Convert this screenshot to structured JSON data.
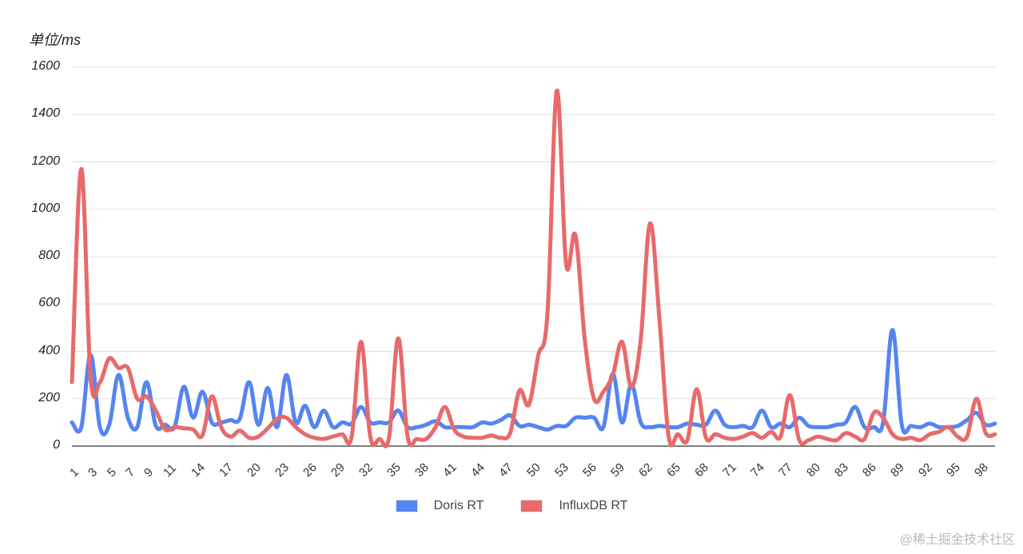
{
  "chart_data": {
    "type": "line",
    "title": "",
    "ylabel": "单位/ms",
    "xlabel": "",
    "ylim": [
      0,
      1600
    ],
    "yticks": [
      0,
      200,
      400,
      600,
      800,
      1000,
      1200,
      1400,
      1600
    ],
    "xtick_labels": [
      "1",
      "3",
      "5",
      "7",
      "9",
      "11",
      "14",
      "17",
      "20",
      "23",
      "26",
      "29",
      "32",
      "35",
      "38",
      "41",
      "44",
      "47",
      "50",
      "53",
      "56",
      "59",
      "62",
      "65",
      "68",
      "71",
      "74",
      "77",
      "80",
      "83",
      "86",
      "89",
      "92",
      "95",
      "98"
    ],
    "grid": true,
    "legend_position": "bottom",
    "x": [
      1,
      2,
      3,
      4,
      5,
      6,
      7,
      8,
      9,
      10,
      11,
      12,
      13,
      14,
      15,
      16,
      17,
      18,
      19,
      20,
      21,
      22,
      23,
      24,
      25,
      26,
      27,
      28,
      29,
      30,
      31,
      32,
      33,
      34,
      35,
      36,
      37,
      38,
      39,
      40,
      41,
      42,
      43,
      44,
      45,
      46,
      47,
      48,
      49,
      50,
      51,
      52,
      53,
      54,
      55,
      56,
      57,
      58,
      59,
      60,
      61,
      62,
      63,
      64,
      65,
      66,
      67,
      68,
      69,
      70,
      71,
      72,
      73,
      74,
      75,
      76,
      77,
      78,
      79,
      80,
      81,
      82,
      83,
      84,
      85,
      86,
      87,
      88,
      89,
      90,
      91,
      92,
      93,
      94,
      95,
      96,
      97,
      98,
      99,
      100
    ],
    "series": [
      {
        "name": "Doris RT",
        "color": "#5585F0",
        "values": [
          100,
          80,
          385,
          80,
          90,
          300,
          120,
          80,
          270,
          85,
          90,
          80,
          250,
          120,
          230,
          100,
          100,
          110,
          115,
          270,
          90,
          245,
          80,
          300,
          100,
          170,
          80,
          150,
          80,
          100,
          95,
          165,
          100,
          100,
          100,
          150,
          80,
          80,
          90,
          105,
          80,
          80,
          80,
          80,
          100,
          95,
          110,
          130,
          85,
          90,
          80,
          70,
          85,
          85,
          120,
          120,
          120,
          80,
          305,
          100,
          260,
          100,
          80,
          85,
          80,
          80,
          95,
          90,
          90,
          150,
          90,
          80,
          85,
          80,
          150,
          80,
          95,
          80,
          120,
          85,
          80,
          80,
          90,
          100,
          165,
          80,
          80,
          100,
          490,
          90,
          85,
          80,
          95,
          80,
          80,
          85,
          110,
          140,
          90,
          95
        ]
      },
      {
        "name": "InfluxDB RT",
        "color": "#E86A6A",
        "values": [
          270,
          1170,
          290,
          270,
          370,
          330,
          330,
          200,
          210,
          150,
          70,
          80,
          75,
          70,
          45,
          210,
          80,
          40,
          65,
          35,
          40,
          75,
          115,
          120,
          80,
          50,
          35,
          30,
          40,
          50,
          40,
          440,
          40,
          30,
          35,
          455,
          40,
          30,
          30,
          80,
          165,
          70,
          40,
          35,
          35,
          45,
          35,
          55,
          235,
          175,
          380,
          560,
          1500,
          770,
          890,
          450,
          200,
          230,
          300,
          440,
          250,
          450,
          940,
          540,
          40,
          50,
          25,
          240,
          35,
          50,
          35,
          30,
          40,
          55,
          35,
          60,
          40,
          215,
          25,
          25,
          40,
          30,
          25,
          55,
          40,
          30,
          140,
          120,
          50,
          30,
          35,
          25,
          50,
          60,
          80,
          40,
          40,
          200,
          55,
          50
        ]
      }
    ]
  },
  "legend": {
    "items": [
      {
        "label": "Doris RT",
        "color": "#5585F0"
      },
      {
        "label": "InfluxDB RT",
        "color": "#E86A6A"
      }
    ]
  },
  "watermark": "@稀土掘金技术社区"
}
